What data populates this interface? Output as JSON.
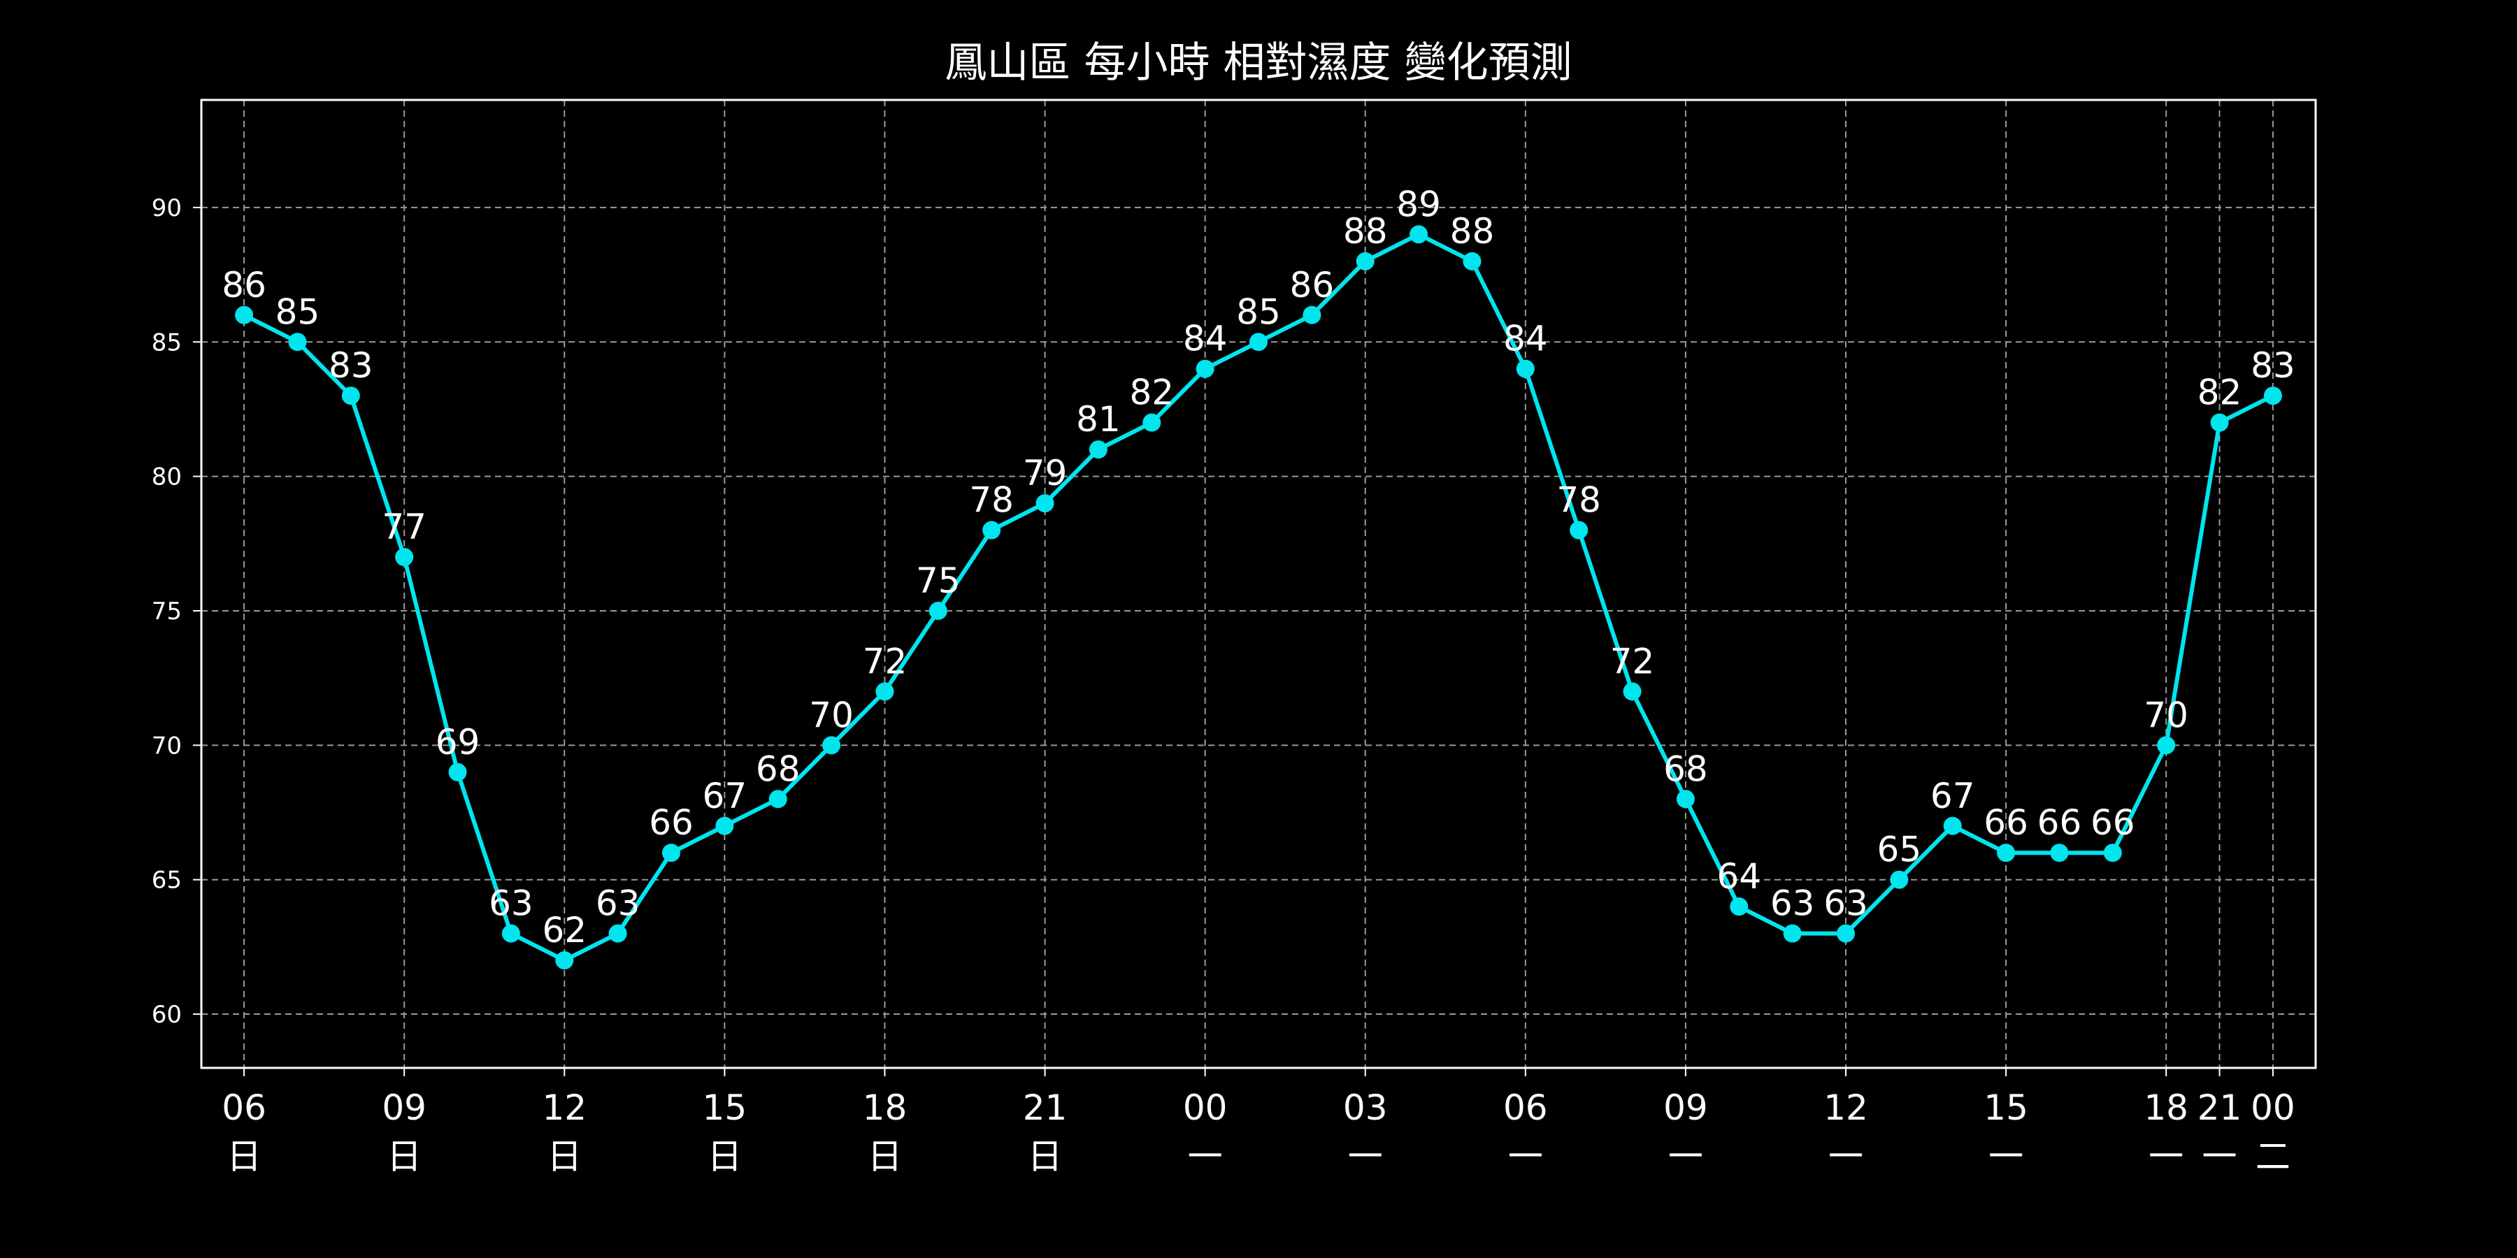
{
  "chart_data": {
    "type": "line",
    "title": "鳳山區 每小時 相對濕度 變化預測",
    "xlabel": "",
    "ylabel": "",
    "ylim": [
      58,
      94
    ],
    "yticks": [
      60,
      65,
      70,
      75,
      80,
      85,
      90
    ],
    "grid": true,
    "legend": "none",
    "colors": {
      "background": "#000000",
      "line": "#00e5ee",
      "grid": "#9a9a9a",
      "axes": "#ffffff",
      "text": "#ffffff"
    },
    "x": [
      0,
      1,
      2,
      3,
      4,
      5,
      6,
      7,
      8,
      9,
      10,
      11,
      12,
      13,
      14,
      15,
      16,
      17,
      18,
      19,
      20,
      21,
      22,
      23,
      24,
      25,
      26,
      27,
      28,
      29,
      30,
      31,
      32,
      33,
      34,
      35,
      36,
      37,
      38
    ],
    "xlim": [
      -0.8,
      38.8
    ],
    "xticks": [
      {
        "x": 0,
        "hour": "06",
        "day": "日"
      },
      {
        "x": 3,
        "hour": "09",
        "day": "日"
      },
      {
        "x": 6,
        "hour": "12",
        "day": "日"
      },
      {
        "x": 9,
        "hour": "15",
        "day": "日"
      },
      {
        "x": 12,
        "hour": "18",
        "day": "日"
      },
      {
        "x": 15,
        "hour": "21",
        "day": "日"
      },
      {
        "x": 18,
        "hour": "00",
        "day": "一"
      },
      {
        "x": 21,
        "hour": "03",
        "day": "一"
      },
      {
        "x": 24,
        "hour": "06",
        "day": "一"
      },
      {
        "x": 27,
        "hour": "09",
        "day": "一"
      },
      {
        "x": 30,
        "hour": "12",
        "day": "一"
      },
      {
        "x": 33,
        "hour": "15",
        "day": "一"
      },
      {
        "x": 36,
        "hour": "18",
        "day": "一"
      },
      {
        "x": 37,
        "hour": "21",
        "day": "一"
      },
      {
        "x": 38,
        "hour": "00",
        "day": "二"
      }
    ],
    "series": [
      {
        "values": [
          86,
          85,
          83,
          77,
          69,
          63,
          62,
          63,
          66,
          67,
          68,
          70,
          72,
          75,
          78,
          79,
          81,
          82,
          84,
          85,
          86,
          88,
          89,
          88,
          84,
          78,
          72,
          68,
          64,
          63,
          63,
          65,
          67,
          66,
          66,
          66,
          70,
          82,
          83
        ]
      }
    ]
  }
}
